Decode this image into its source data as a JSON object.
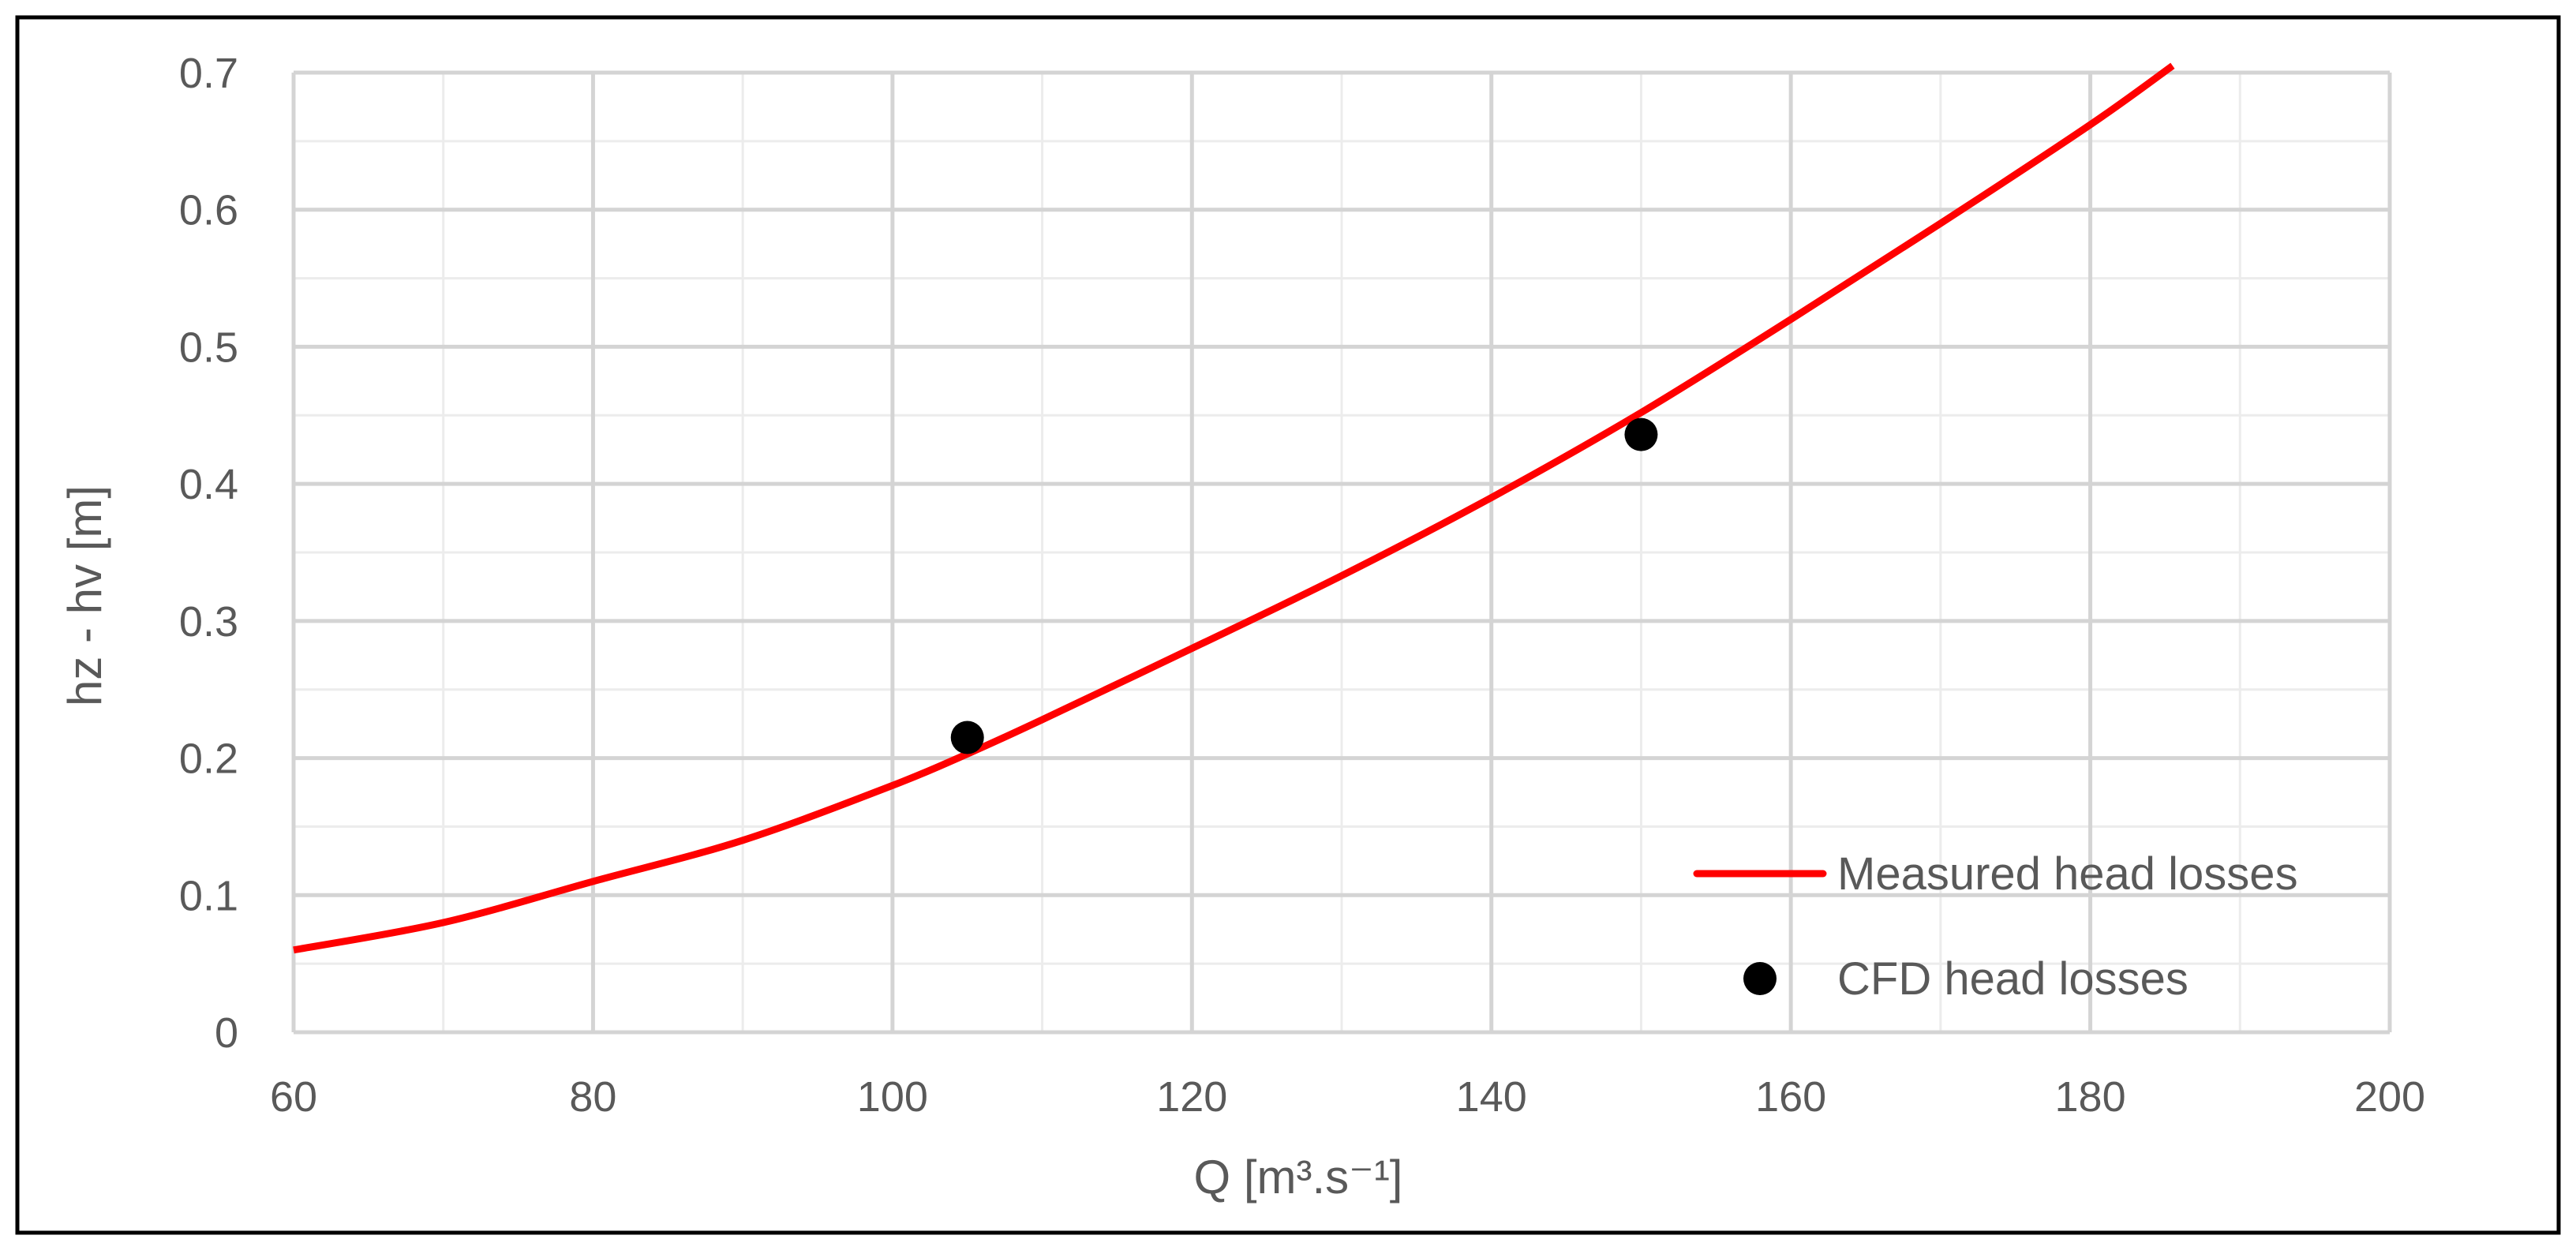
{
  "chart_data": {
    "type": "line",
    "title": "",
    "xlabel": "Q [m³.s⁻¹]",
    "ylabel": "hz - hv [m]",
    "xlim": [
      60,
      200
    ],
    "ylim": [
      0,
      0.7
    ],
    "x_major_ticks": [
      60,
      80,
      100,
      120,
      140,
      160,
      180,
      200
    ],
    "x_tick_labels": [
      "60",
      "80",
      "100",
      "120",
      "140",
      "160",
      "180",
      "200"
    ],
    "x_minor_step": 10,
    "y_major_ticks": [
      0,
      0.1,
      0.2,
      0.3,
      0.4,
      0.5,
      0.6,
      0.7
    ],
    "y_tick_labels": [
      "0",
      "0.1",
      "0.2",
      "0.3",
      "0.4",
      "0.5",
      "0.6",
      "0.7"
    ],
    "y_minor_step": 0.05,
    "grid": true,
    "legend": "bottom-right",
    "series": [
      {
        "name": "Measured head losses",
        "kind": "line",
        "color": "#ff0000",
        "x": [
          60,
          70,
          80,
          90,
          100,
          105,
          110,
          120,
          130,
          140,
          150,
          160,
          170,
          180,
          185.5
        ],
        "y": [
          0.06,
          0.08,
          0.11,
          0.14,
          0.18,
          0.203,
          0.228,
          0.28,
          0.333,
          0.39,
          0.452,
          0.52,
          0.59,
          0.662,
          0.705
        ]
      },
      {
        "name": "CFD head losses",
        "kind": "scatter",
        "color": "#000000",
        "x": [
          105,
          150
        ],
        "y": [
          0.215,
          0.436
        ]
      }
    ]
  }
}
